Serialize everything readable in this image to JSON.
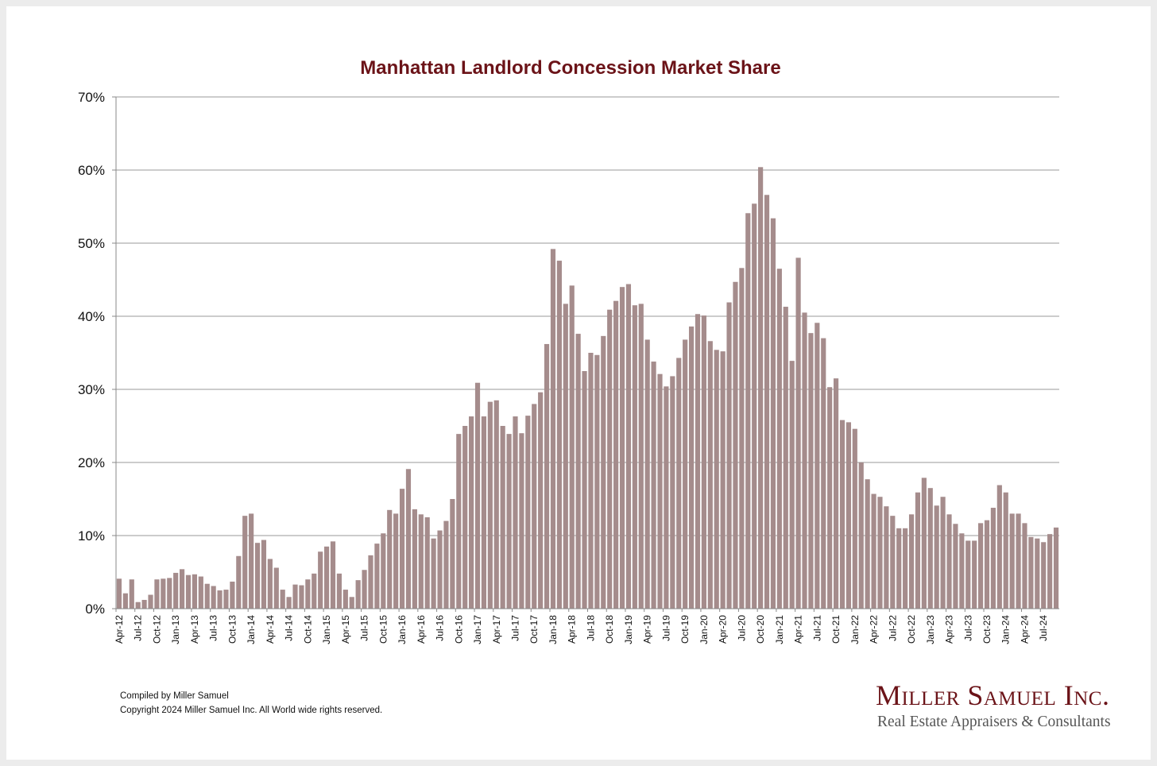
{
  "chart_data": {
    "type": "bar",
    "title": "Manhattan Landlord Concession Market Share",
    "xlabel": "",
    "ylabel": "",
    "ylim": [
      0,
      70
    ],
    "yticks": [
      "0%",
      "10%",
      "20%",
      "30%",
      "40%",
      "50%",
      "60%",
      "70%"
    ],
    "grid": true,
    "bar_color": "#a58c8c",
    "title_color": "#6b1318",
    "start_month": "Apr-12",
    "end_month": "Sep-24",
    "xtick_labels": [
      "Apr-12",
      "Jul-12",
      "Oct-12",
      "Jan-13",
      "Apr-13",
      "Jul-13",
      "Oct-13",
      "Jan-14",
      "Apr-14",
      "Jul-14",
      "Oct-14",
      "Jan-15",
      "Apr-15",
      "Jul-15",
      "Oct-15",
      "Jan-16",
      "Apr-16",
      "Jul-16",
      "Oct-16",
      "Jan-17",
      "Apr-17",
      "Jul-17",
      "Oct-17",
      "Jan-18",
      "Apr-18",
      "Jul-18",
      "Oct-18",
      "Jan-19",
      "Apr-19",
      "Jul-19",
      "Oct-19",
      "Jan-20",
      "Apr-20",
      "Jul-20",
      "Oct-20",
      "Jan-21",
      "Apr-21",
      "Jul-21",
      "Oct-21",
      "Jan-22",
      "Apr-22",
      "Jul-22",
      "Oct-22",
      "Jan-23",
      "Apr-23",
      "Jul-23",
      "Oct-23",
      "Jan-24",
      "Apr-24",
      "Jul-24"
    ],
    "values": [
      4.1,
      2.1,
      4.0,
      0.9,
      1.2,
      1.9,
      4.0,
      4.1,
      4.2,
      4.9,
      5.4,
      4.6,
      4.7,
      4.4,
      3.4,
      3.1,
      2.5,
      2.6,
      3.7,
      7.2,
      12.7,
      13.0,
      9.0,
      9.4,
      6.8,
      5.6,
      2.6,
      1.6,
      3.3,
      3.2,
      4.0,
      4.8,
      7.8,
      8.5,
      9.2,
      4.8,
      2.6,
      1.6,
      3.9,
      5.3,
      7.3,
      8.9,
      10.3,
      13.5,
      13.0,
      16.4,
      19.1,
      13.6,
      12.9,
      12.5,
      9.6,
      10.7,
      12.0,
      15.0,
      23.9,
      25.0,
      26.3,
      30.9,
      26.3,
      28.3,
      28.5,
      25.0,
      23.9,
      26.3,
      24.0,
      26.4,
      28.0,
      29.6,
      36.2,
      49.2,
      47.6,
      41.7,
      44.2,
      37.6,
      32.5,
      35.0,
      34.7,
      37.3,
      40.9,
      42.1,
      44.0,
      44.4,
      41.5,
      41.7,
      36.8,
      33.8,
      32.1,
      30.4,
      31.8,
      34.3,
      36.8,
      38.6,
      40.3,
      40.1,
      36.6,
      35.4,
      35.2,
      41.9,
      44.7,
      46.6,
      54.1,
      55.4,
      60.4,
      56.6,
      53.4,
      46.5,
      41.3,
      33.9,
      48.0,
      40.5,
      37.7,
      39.1,
      37.0,
      30.3,
      31.5,
      25.8,
      25.5,
      24.6,
      20.0,
      17.7,
      15.7,
      15.3,
      14.0,
      12.7,
      11.0,
      11.0,
      12.9,
      15.9,
      17.9,
      16.5,
      14.1,
      15.3,
      12.9,
      11.6,
      10.3,
      9.3,
      9.3,
      11.7,
      12.1,
      13.8,
      16.9,
      15.9,
      13.0,
      13.0,
      11.7,
      9.8,
      9.6,
      9.1,
      10.2,
      11.1
    ]
  },
  "footer": {
    "compiled_by": "Compiled by Miller Samuel",
    "copyright": "Copyright 2024 Miller Samuel Inc.  All World wide rights reserved."
  },
  "logo": {
    "name": "Miller Samuel Inc.",
    "tagline": "Real Estate Appraisers & Consultants"
  }
}
